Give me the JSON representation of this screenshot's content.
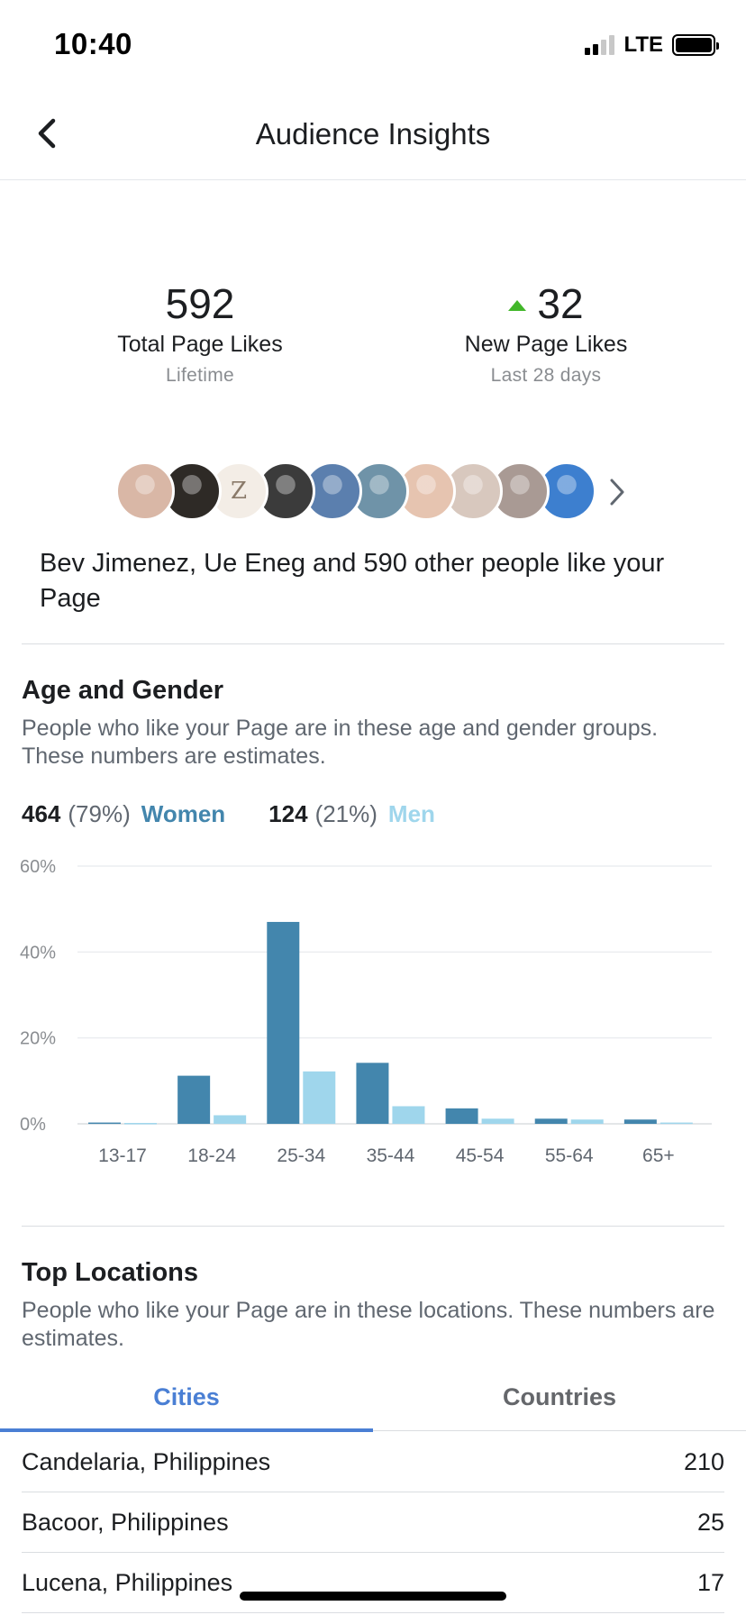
{
  "status_bar": {
    "time": "10:40",
    "network": "LTE"
  },
  "header": {
    "title": "Audience Insights"
  },
  "stats": {
    "total": {
      "value": "592",
      "label": "Total Page Likes",
      "period": "Lifetime"
    },
    "new": {
      "value": "32",
      "label": "New Page Likes",
      "period": "Last 28 days"
    }
  },
  "likers": {
    "text": "Bev Jimenez, Ue Eneg and 590 other people like your Page",
    "avatars": [
      {
        "color": "#d9b7a6",
        "letter": ""
      },
      {
        "color": "#2e2a26",
        "letter": ""
      },
      {
        "color": "#f3ede6",
        "letter": "Z"
      },
      {
        "color": "#3b3b3b",
        "letter": ""
      },
      {
        "color": "#5b7fae",
        "letter": ""
      },
      {
        "color": "#6f93a8",
        "letter": ""
      },
      {
        "color": "#e6c4b0",
        "letter": ""
      },
      {
        "color": "#d8c8be",
        "letter": ""
      },
      {
        "color": "#a99a94",
        "letter": ""
      },
      {
        "color": "#3d7fcf",
        "letter": ""
      }
    ]
  },
  "age_gender": {
    "title": "Age and Gender",
    "description": "People who like your Page are in these age and gender groups. These numbers are estimates.",
    "women": {
      "count": "464",
      "pct": "(79%)",
      "label": "Women"
    },
    "men": {
      "count": "124",
      "pct": "(21%)",
      "label": "Men"
    }
  },
  "chart_data": {
    "type": "bar",
    "categories": [
      "13-17",
      "18-24",
      "25-34",
      "35-44",
      "45-54",
      "55-64",
      "65+"
    ],
    "series": [
      {
        "name": "Women",
        "color": "#4386ad",
        "values": [
          0.3,
          11.2,
          47.0,
          14.2,
          3.6,
          1.2,
          1.0
        ]
      },
      {
        "name": "Men",
        "color": "#9fd6ec",
        "values": [
          0.2,
          2.0,
          12.2,
          4.1,
          1.2,
          1.0,
          0.3
        ]
      }
    ],
    "yticks": [
      "60%",
      "40%",
      "20%",
      "0%"
    ],
    "ylim": [
      0,
      60
    ],
    "grid": true
  },
  "top_locations": {
    "title": "Top Locations",
    "description": "People who like your Page are in these locations. These numbers are estimates.",
    "tabs": {
      "cities": "Cities",
      "countries": "Countries"
    },
    "rows": [
      {
        "name": "Candelaria, Philippines",
        "count": "210"
      },
      {
        "name": "Bacoor, Philippines",
        "count": "25"
      },
      {
        "name": "Lucena, Philippines",
        "count": "17"
      }
    ]
  }
}
